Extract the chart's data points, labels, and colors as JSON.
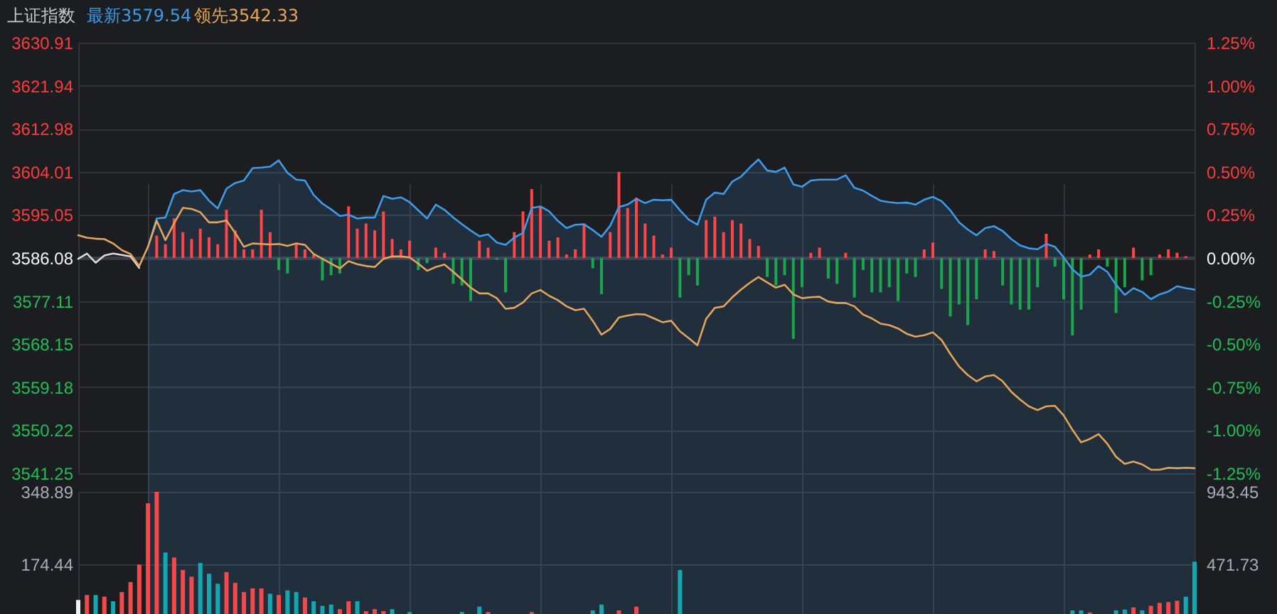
{
  "chart_data": [
    {
      "type": "line",
      "title": "上证指数",
      "legend": "top left",
      "grid": true,
      "categories": [
        null,
        null,
        null,
        null,
        null,
        null,
        null,
        null,
        null,
        null,
        null,
        null,
        null,
        null,
        null,
        null,
        null,
        null,
        null,
        null,
        null,
        null,
        null,
        null,
        null,
        null,
        null,
        null,
        null,
        null,
        null,
        null,
        null,
        null,
        null,
        null,
        null,
        null,
        null,
        null,
        null,
        null,
        null,
        null,
        null,
        null,
        null,
        null,
        null,
        null,
        null,
        null,
        null,
        null,
        null,
        null,
        null,
        null,
        null,
        null,
        null,
        null,
        null,
        null,
        null,
        null,
        null,
        null,
        null,
        null,
        null,
        null,
        null,
        null,
        null,
        null,
        null,
        null,
        null,
        null,
        null,
        null,
        null,
        null,
        null,
        null,
        null,
        null,
        null,
        null,
        null,
        null,
        null,
        null,
        null,
        null,
        null,
        null,
        null,
        null,
        null,
        null,
        null,
        null,
        null,
        null,
        null,
        null,
        null,
        null,
        null,
        null,
        null,
        null,
        null,
        null,
        null,
        null,
        null,
        null,
        null,
        null,
        null,
        null,
        null,
        null,
        null,
        null,
        null
      ],
      "ylim": [
        3541.25,
        3630.91
      ],
      "yticks": [
        3541.25,
        3550.22,
        3559.18,
        3568.15,
        3577.11,
        3586.08,
        3595.05,
        3604.01,
        3612.98,
        3621.94,
        3630.91
      ],
      "y2lim": [
        -1.25,
        1.25
      ],
      "y2ticks": [
        {
          "value": -1.25,
          "label": "-1.25%"
        },
        {
          "value": -1,
          "label": "-1.00%"
        },
        {
          "value": -0.75,
          "label": "-0.75%"
        },
        {
          "value": -0.5,
          "label": "-0.50%"
        },
        {
          "value": -0.25,
          "label": "-0.25%"
        },
        {
          "value": 0,
          "label": "0.00%"
        },
        {
          "value": 0.25,
          "label": "0.25%"
        },
        {
          "value": 0.5,
          "label": "0.50%"
        },
        {
          "value": 0.75,
          "label": "0.75%"
        },
        {
          "value": 1,
          "label": "1.00%"
        },
        {
          "value": 1.25,
          "label": "1.25%"
        }
      ],
      "ref_lines": [
        {
          "axis": "y",
          "value": 3586.08,
          "color": "#3a3d44"
        }
      ],
      "series": [
        {
          "name": "最新3579.54",
          "type": "area",
          "color": "#3d9be9",
          "values": [
            null,
            null,
            null,
            null,
            null,
            null,
            null,
            null,
            3588.4,
            3594.3,
            3594.5,
            3599.4,
            3600.2,
            3599.9,
            3600.2,
            3598.0,
            3596.4,
            3600.5,
            3601.7,
            3602.2,
            3604.8,
            3604.9,
            3605.1,
            3606.4,
            3603.8,
            3602.4,
            3602.2,
            3599.2,
            3597.4,
            3596.2,
            3594.8,
            3595.1,
            3594.3,
            3594.5,
            3594.5,
            3599.0,
            3598.4,
            3598.7,
            3597.7,
            3596.0,
            3594.3,
            3597.2,
            3596.1,
            3594.5,
            3593.1,
            3591.8,
            3590.6,
            3591.0,
            3589.3,
            3588.8,
            3590.3,
            3591.3,
            3596.5,
            3596.8,
            3595.8,
            3593.8,
            3592.3,
            3593.0,
            3593.1,
            3591.9,
            3590.5,
            3592.8,
            3596.7,
            3597.2,
            3598.4,
            3597.5,
            3598.2,
            3598.1,
            3598.2,
            3596.0,
            3594.1,
            3593.0,
            3598.2,
            3599.7,
            3599.4,
            3602.0,
            3603.0,
            3604.9,
            3606.6,
            3604.3,
            3604.0,
            3604.9,
            3601.4,
            3600.9,
            3602.2,
            3602.4,
            3602.4,
            3602.4,
            3603.3,
            3600.7,
            3600.1,
            3599.0,
            3598.0,
            3597.7,
            3597.5,
            3597.6,
            3597.2,
            3598.2,
            3598.8,
            3597.9,
            3596.0,
            3593.5,
            3592.0,
            3590.8,
            3592.3,
            3592.7,
            3591.7,
            3590.0,
            3588.7,
            3588.1,
            3587.9,
            3589.0,
            3588.4,
            3586.2,
            3583.7,
            3582.2,
            3582.6,
            3584.4,
            3583.2,
            3580.5,
            3578.4,
            3579.8,
            3579.0,
            3577.5,
            3578.5,
            3579.1,
            3580.2,
            3579.8,
            3579.5
          ]
        },
        {
          "type": "line",
          "color": "#d9d9d9",
          "values": [
            3585.9,
            3587.0,
            3585.1,
            3586.6,
            3587.0,
            3586.7,
            3586.4,
            3584.0,
            null,
            null,
            null,
            null,
            null,
            null,
            null,
            null,
            null,
            null,
            null,
            null,
            null,
            null,
            null,
            null,
            null,
            null,
            null,
            null,
            null,
            null,
            null,
            null,
            null,
            null,
            null,
            null,
            null,
            null,
            null,
            null,
            null,
            null,
            null,
            null,
            null,
            null,
            null,
            null,
            null,
            null,
            null,
            null,
            null,
            null,
            null,
            null,
            null,
            null,
            null,
            null,
            null,
            null,
            null,
            null,
            null,
            null,
            null,
            null,
            null,
            null,
            null,
            null,
            null,
            null,
            null,
            null,
            null,
            null,
            null,
            null,
            null,
            null,
            null,
            null,
            null,
            null,
            null,
            null,
            null,
            null,
            null,
            null,
            null,
            null,
            null,
            null,
            null,
            null,
            null,
            null,
            null,
            null,
            null,
            null,
            null,
            null,
            null,
            null,
            null,
            null,
            null,
            null,
            null,
            null,
            null,
            null,
            null,
            null,
            null,
            null,
            null,
            null,
            null,
            null,
            null,
            null,
            null,
            null,
            null
          ]
        },
        {
          "name": "领先3542.33",
          "type": "line",
          "color": "#e5a45a",
          "values": [
            3590.8,
            3590.3,
            3590.1,
            3590.0,
            3589.1,
            3587.7,
            3586.9,
            3584.4,
            3588.4,
            3593.8,
            3589.8,
            3593.3,
            3596.5,
            3596.3,
            3595.6,
            3593.5,
            3593.5,
            3593.9,
            3591.3,
            3588.4,
            3589.1,
            3589.0,
            3588.9,
            3589.0,
            3588.6,
            3589.1,
            3588.8,
            3586.9,
            3585.9,
            3584.9,
            3583.9,
            3585.4,
            3584.8,
            3584.4,
            3584.2,
            3585.9,
            3586.4,
            3586.4,
            3586.2,
            3584.9,
            3583.4,
            3584.2,
            3584.7,
            3583.2,
            3581.6,
            3579.9,
            3578.7,
            3578.7,
            3577.7,
            3575.5,
            3575.7,
            3576.8,
            3578.7,
            3579.4,
            3578.2,
            3577.3,
            3576.0,
            3575.2,
            3575.5,
            3573.0,
            3570.1,
            3571.3,
            3573.7,
            3574.1,
            3574.4,
            3574.3,
            3573.5,
            3572.7,
            3573.0,
            3570.8,
            3569.4,
            3567.9,
            3573.4,
            3575.7,
            3576.0,
            3577.9,
            3579.5,
            3580.9,
            3582.1,
            3581.0,
            3579.9,
            3580.5,
            3578.5,
            3577.7,
            3577.9,
            3578.0,
            3577.0,
            3576.7,
            3576.7,
            3576.0,
            3574.3,
            3573.5,
            3572.4,
            3572.1,
            3571.4,
            3570.3,
            3569.7,
            3570.0,
            3570.6,
            3569.0,
            3566.1,
            3563.5,
            3561.7,
            3560.4,
            3561.4,
            3561.7,
            3560.4,
            3558.2,
            3556.6,
            3555.2,
            3554.4,
            3555.2,
            3555.3,
            3553.3,
            3550.3,
            3547.7,
            3548.4,
            3549.4,
            3547.4,
            3544.7,
            3543.2,
            3543.7,
            3543.1,
            3542.0,
            3542.0,
            3542.4,
            3542.3,
            3542.4,
            3542.3
          ]
        },
        {
          "type": "bar",
          "axis": "y2",
          "color": "#ff4545",
          "values": [
            null,
            null,
            null,
            null,
            null,
            null,
            null,
            null,
            null,
            0.13,
            0.08,
            0.23,
            0.15,
            0.11,
            0.17,
            0.12,
            0.08,
            0.28,
            0.16,
            0.05,
            0.05,
            0.28,
            0.15,
            null,
            null,
            0.08,
            0.05,
            0.02,
            null,
            null,
            null,
            0.3,
            0.17,
            0.2,
            0.16,
            0.27,
            0.11,
            0.05,
            0.1,
            null,
            null,
            0.06,
            0.03,
            null,
            null,
            null,
            0.1,
            0.06,
            null,
            null,
            0.15,
            0.27,
            0.4,
            0.3,
            0.1,
            0.12,
            0.02,
            0.05,
            0.2,
            null,
            null,
            0.15,
            0.5,
            0.29,
            0.35,
            0.2,
            0.13,
            0.02,
            0.06,
            null,
            null,
            null,
            0.22,
            0.24,
            0.15,
            0.22,
            0.2,
            0.11,
            0.07,
            null,
            null,
            null,
            null,
            null,
            0.03,
            0.06,
            null,
            null,
            0.03,
            null,
            null,
            null,
            null,
            null,
            null,
            null,
            null,
            0.05,
            0.09,
            null,
            null,
            null,
            null,
            null,
            0.05,
            0.04,
            null,
            null,
            null,
            null,
            null,
            0.14,
            null,
            null,
            null,
            null,
            0.02,
            0.05,
            null,
            null,
            null,
            0.06,
            null,
            null,
            0.02,
            0.05,
            0.03,
            0.01,
            null
          ]
        },
        {
          "type": "bar",
          "axis": "y2",
          "color": "#1aa64a",
          "values": [
            null,
            null,
            null,
            null,
            null,
            null,
            null,
            null,
            null,
            null,
            null,
            null,
            null,
            null,
            null,
            null,
            null,
            null,
            null,
            null,
            null,
            null,
            null,
            -0.07,
            -0.09,
            null,
            null,
            null,
            -0.13,
            -0.1,
            -0.09,
            null,
            null,
            null,
            null,
            null,
            null,
            null,
            null,
            -0.07,
            -0.03,
            null,
            null,
            -0.15,
            -0.16,
            -0.25,
            null,
            null,
            -0.01,
            -0.2,
            null,
            null,
            null,
            null,
            null,
            null,
            null,
            null,
            null,
            -0.06,
            -0.21,
            null,
            null,
            null,
            null,
            null,
            null,
            null,
            null,
            -0.23,
            -0.1,
            -0.16,
            null,
            null,
            null,
            null,
            null,
            null,
            null,
            -0.11,
            -0.16,
            -0.1,
            -0.47,
            -0.17,
            null,
            null,
            -0.12,
            -0.15,
            null,
            -0.23,
            -0.07,
            -0.2,
            -0.2,
            -0.17,
            -0.25,
            -0.09,
            -0.11,
            null,
            null,
            -0.18,
            -0.34,
            -0.27,
            -0.39,
            -0.24,
            null,
            null,
            -0.16,
            -0.27,
            -0.3,
            -0.3,
            -0.17,
            null,
            -0.05,
            -0.24,
            -0.45,
            -0.3,
            null,
            null,
            -0.05,
            -0.32,
            -0.17,
            null,
            -0.13,
            -0.1,
            null,
            null,
            null,
            null,
            null
          ]
        }
      ]
    },
    {
      "type": "bar",
      "grid": true,
      "categories": [
        null,
        null,
        null,
        null,
        null,
        null,
        null,
        null,
        null,
        null,
        null,
        null,
        null,
        null,
        null,
        null,
        null,
        null,
        null,
        null,
        null,
        null,
        null,
        null,
        null,
        null,
        null,
        null,
        null,
        null,
        null,
        null,
        null,
        null,
        null,
        null,
        null,
        null,
        null,
        null,
        null,
        null,
        null,
        null,
        null,
        null,
        null,
        null,
        null,
        null,
        null,
        null,
        null,
        null,
        null,
        null,
        null,
        null,
        null,
        null,
        null,
        null,
        null,
        null,
        null,
        null,
        null,
        null,
        null,
        null,
        null,
        null,
        null,
        null,
        null,
        null,
        null,
        null,
        null,
        null,
        null,
        null,
        null,
        null,
        null,
        null,
        null,
        null,
        null,
        null,
        null,
        null,
        null,
        null,
        null,
        null,
        null,
        null,
        null,
        null,
        null,
        null,
        null,
        null,
        null,
        null,
        null,
        null,
        null,
        null,
        null,
        null,
        null,
        null,
        null,
        null,
        null,
        null,
        null,
        null,
        null,
        null,
        null,
        null,
        null,
        null,
        null,
        null,
        null
      ],
      "ylim": [
        55.3,
        348.89
      ],
      "yticks": [
        174.44,
        348.89
      ],
      "y2lim": [
        149.5,
        943.45
      ],
      "y2ticks": [
        471.73,
        943.45
      ],
      "series": [
        {
          "color": "#f5484a",
          "values": [
            null,
            101,
            null,
            97,
            null,
            108,
            132,
            174,
            321,
            348.89,
            null,
            191,
            161,
            145,
            null,
            null,
            null,
            156,
            130,
            108,
            117,
            117,
            null,
            101,
            null,
            null,
            95,
            null,
            null,
            null,
            67,
            86,
            null,
            62,
            67,
            62,
            null,
            null,
            null,
            null,
            null,
            null,
            null,
            null,
            null,
            null,
            null,
            60,
            null,
            null,
            null,
            null,
            60,
            null,
            null,
            null,
            null,
            null,
            null,
            null,
            null,
            null,
            64,
            null,
            73,
            null,
            null,
            null,
            null,
            null,
            null,
            null,
            null,
            null,
            null,
            null,
            null,
            null,
            null,
            null,
            null,
            null,
            null,
            null,
            null,
            null,
            null,
            null,
            null,
            null,
            null,
            null,
            null,
            null,
            null,
            null,
            null,
            null,
            null,
            null,
            null,
            null,
            null,
            null,
            null,
            null,
            null,
            null,
            null,
            null,
            null,
            null,
            null,
            null,
            null,
            null,
            59,
            null,
            null,
            null,
            null,
            71,
            null,
            75,
            82,
            84,
            87,
            null,
            null
          ]
        },
        {
          "color": "#14a7b2",
          "values": [
            null,
            null,
            101,
            null,
            86,
            null,
            null,
            null,
            null,
            null,
            203,
            null,
            null,
            null,
            178,
            152,
            128,
            null,
            null,
            null,
            null,
            null,
            104,
            null,
            112,
            108,
            null,
            86,
            75,
            78,
            null,
            null,
            86,
            null,
            null,
            null,
            67,
            null,
            60,
            null,
            null,
            null,
            null,
            null,
            60,
            null,
            73,
            null,
            null,
            null,
            null,
            null,
            null,
            null,
            null,
            null,
            null,
            null,
            null,
            64,
            78,
            null,
            null,
            null,
            null,
            null,
            null,
            null,
            null,
            161,
            null,
            null,
            null,
            null,
            null,
            null,
            null,
            null,
            null,
            null,
            null,
            null,
            null,
            null,
            null,
            null,
            null,
            null,
            null,
            null,
            null,
            null,
            null,
            null,
            null,
            null,
            null,
            null,
            null,
            null,
            null,
            null,
            null,
            null,
            null,
            null,
            null,
            null,
            null,
            null,
            null,
            null,
            null,
            null,
            64,
            64,
            null,
            null,
            null,
            64,
            66,
            null,
            64,
            null,
            null,
            null,
            null,
            97,
            181
          ]
        },
        {
          "color": "#f0f0f0",
          "values": [
            89,
            null,
            null,
            null,
            null,
            null,
            null,
            null,
            null,
            null,
            null,
            null,
            null,
            null,
            null,
            null,
            null,
            null,
            null,
            null,
            null,
            null,
            null,
            null,
            null,
            null,
            null,
            null,
            null,
            null,
            null,
            null,
            null,
            null,
            null,
            null,
            null,
            null,
            null,
            null,
            null,
            null,
            null,
            null,
            null,
            null,
            null,
            null,
            null,
            null,
            null,
            null,
            null,
            null,
            null,
            null,
            null,
            null,
            null,
            null,
            null,
            null,
            null,
            null,
            null,
            null,
            null,
            null,
            null,
            null,
            null,
            null,
            null,
            null,
            null,
            null,
            null,
            null,
            null,
            null,
            null,
            null,
            null,
            null,
            null,
            null,
            null,
            null,
            null,
            null,
            null,
            null,
            null,
            null,
            null,
            null,
            null,
            null,
            null,
            null,
            null,
            null,
            null,
            null,
            null,
            null,
            null,
            null,
            null,
            null,
            null,
            null,
            null,
            null,
            null,
            null,
            null,
            null,
            null,
            null,
            null,
            null,
            null,
            null,
            null,
            null,
            null,
            null,
            null
          ]
        }
      ]
    }
  ]
}
